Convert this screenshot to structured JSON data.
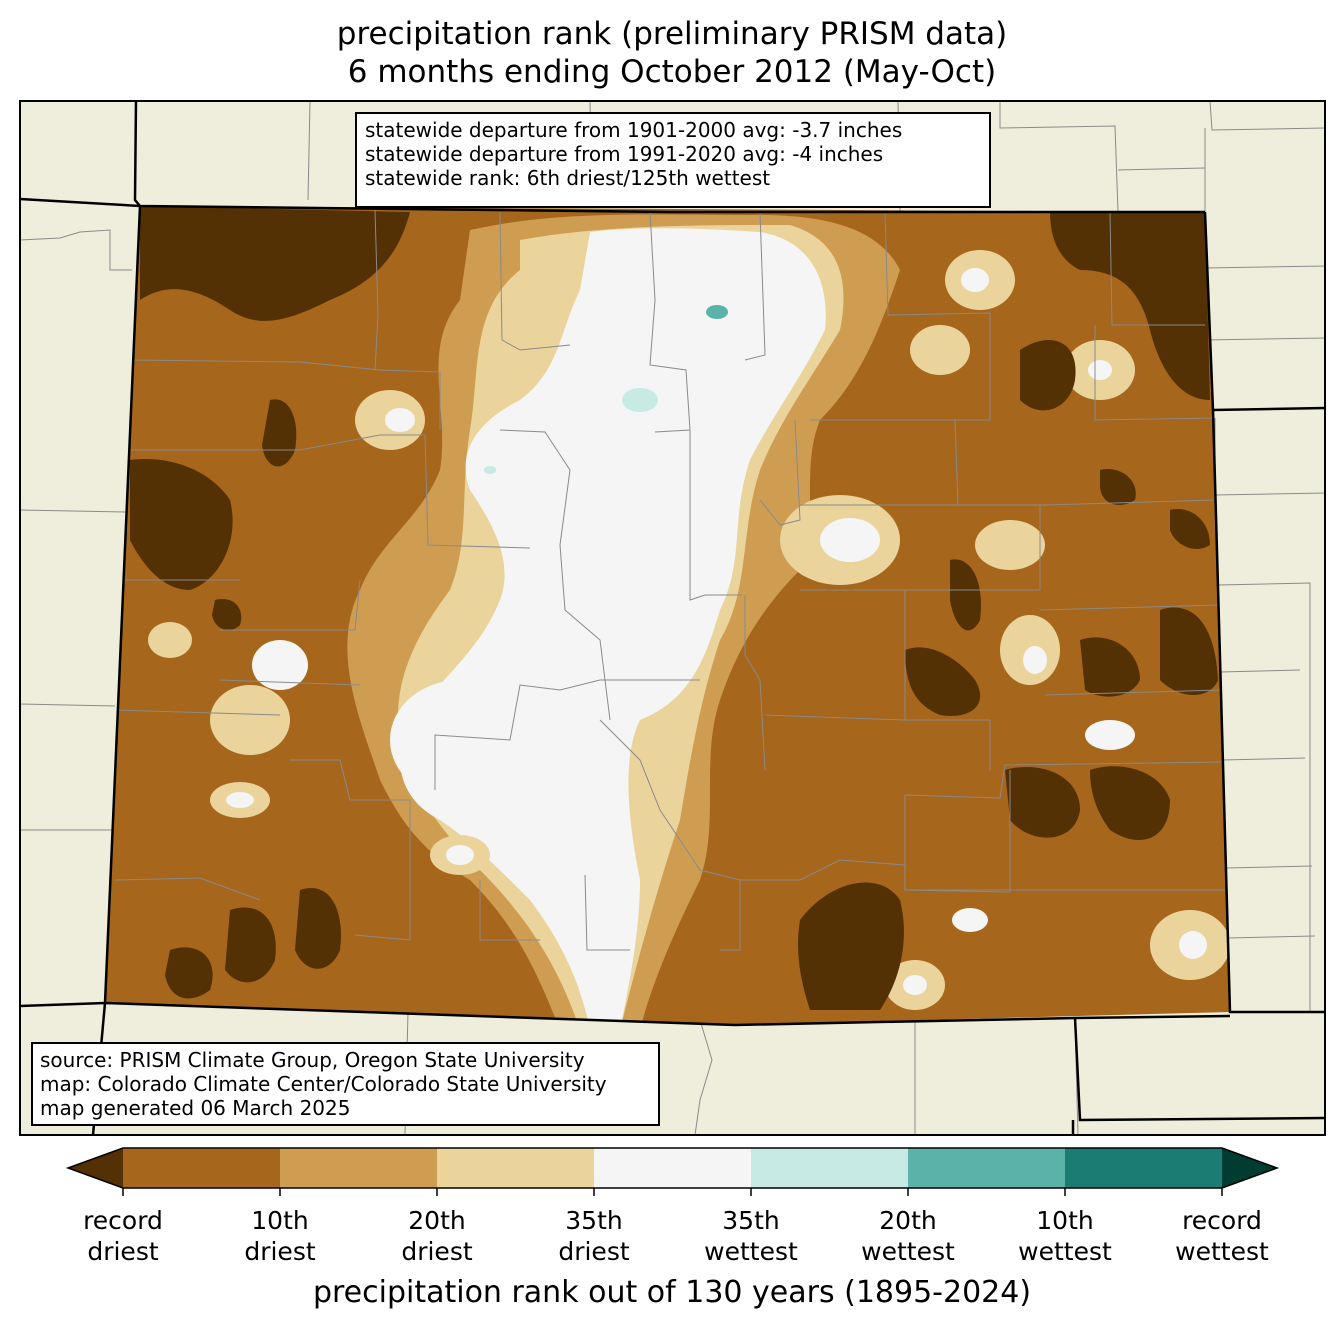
{
  "title": {
    "line1": "precipitation rank (preliminary PRISM data)",
    "line2": "6 months ending October 2012 (May-Oct)"
  },
  "stats": {
    "line1": "statewide departure from 1901-2000 avg: -3.7 inches",
    "line2": "statewide departure from 1991-2020 avg: -4 inches",
    "line3": "statewide rank: 6th driest/125th wettest"
  },
  "credits": {
    "line1": "source: PRISM Climate Group, Oregon State University",
    "line2": "map: Colorado Climate Center/Colorado State University",
    "line3": "map generated 06 March 2025"
  },
  "colorbar": {
    "title": "precipitation rank out of 130 years (1895-2024)",
    "colors": {
      "under": "#543005",
      "over": "#003c30",
      "bins": [
        "#a6661c",
        "#cf9d52",
        "#ebd49c",
        "#f4f5f4",
        "#c7eae4",
        "#5ab2a8",
        "#1a7c72"
      ]
    },
    "ticks": [
      {
        "top": "record",
        "bottom": "driest"
      },
      {
        "top": "10th",
        "bottom": "driest"
      },
      {
        "top": "20th",
        "bottom": "driest"
      },
      {
        "top": "35th",
        "bottom": "driest"
      },
      {
        "top": "35th",
        "bottom": "wettest"
      },
      {
        "top": "20th",
        "bottom": "wettest"
      },
      {
        "top": "10th",
        "bottom": "wettest"
      },
      {
        "top": "record",
        "bottom": "wettest"
      }
    ]
  },
  "map_colors": {
    "background": "#efeedc",
    "record_driest": "#543005",
    "driest_10": "#a6661c",
    "driest_20": "#cf9d52",
    "driest_35": "#ebd49c",
    "normal": "#f4f5f4",
    "wettest_35": "#c7eae4",
    "wettest_20": "#5ab2a8"
  }
}
